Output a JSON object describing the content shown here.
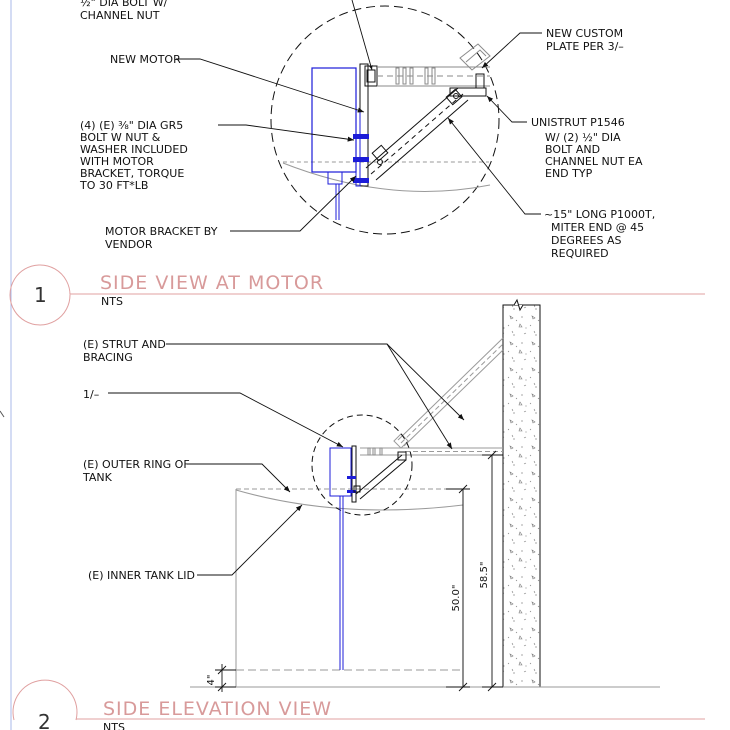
{
  "detail1": {
    "number": "1",
    "title": "SIDE VIEW AT MOTOR",
    "scale": "NTS",
    "callouts": {
      "top_left": [
        "½\" DIA BOLT W/",
        "CHANNEL NUT"
      ],
      "new_motor": [
        "NEW MOTOR"
      ],
      "bolts": [
        "(4) (E) ⅜\" DIA GR5",
        "BOLT W NUT &",
        "WASHER INCLUDED",
        "WITH MOTOR",
        "BRACKET, TORQUE",
        "TO 30 FT*LB"
      ],
      "motor_bracket": [
        "MOTOR BRACKET BY",
        "VENDOR"
      ],
      "custom_plate": [
        "NEW CUSTOM",
        "PLATE PER 3/–"
      ],
      "unistrut": [
        "UNISTRUT P1546",
        "W/ (2) ½\" DIA",
        "BOLT AND",
        "CHANNEL NUT EA",
        "END TYP"
      ],
      "brace": [
        "~15\" LONG P1000T,",
        "MITER END @ 45",
        "DEGREES AS",
        "REQUIRED"
      ]
    }
  },
  "detail2": {
    "number": "2",
    "title": "SIDE ELEVATION VIEW",
    "scale": "NTS",
    "callouts": {
      "strut": [
        "(E) STRUT AND",
        "BRACING"
      ],
      "ref": [
        "1/–"
      ],
      "outer_ring": [
        "(E) OUTER RING OF",
        "TANK"
      ],
      "inner_lid": [
        "(E) INNER TANK LID"
      ]
    },
    "dimensions": {
      "tank_height": "50.0\"",
      "strut_height": "58.5\"",
      "bottom_gap": "4\""
    }
  }
}
